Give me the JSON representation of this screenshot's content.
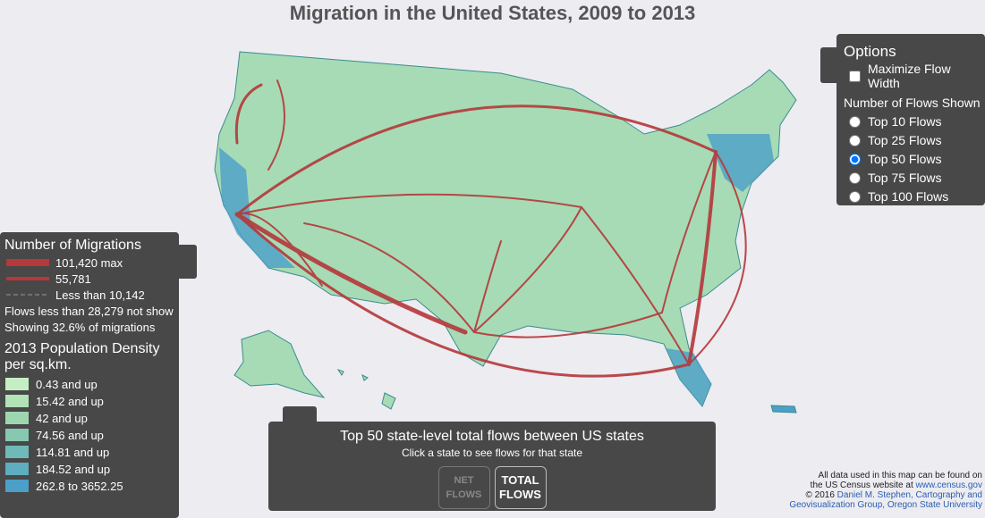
{
  "header": {
    "title": "Migration in the United States, 2009 to 2013"
  },
  "options": {
    "title": "Options",
    "maximize_flow_width": "Maximize Flow Width",
    "flows_heading": "Number of Flows Shown",
    "flow_choices": [
      "Top 10 Flows",
      "Top 25 Flows",
      "Top 50 Flows",
      "Top 75 Flows",
      "Top 100 Flows"
    ],
    "selected": 2
  },
  "legend": {
    "migrations_title": "Number of Migrations",
    "max_label": "101,420 max",
    "mid_label": "55,781",
    "min_label": "Less than 10,142",
    "note1": "Flows less than 28,279 not show",
    "note2": "Showing 32.6% of migrations",
    "density_title": "2013 Population Density",
    "density_subtitle": "per sq.km.",
    "density_classes": [
      {
        "label": "0.43 and up",
        "color": "#c6eec4"
      },
      {
        "label": "15.42 and up",
        "color": "#b2e2b6"
      },
      {
        "label": "42 and up",
        "color": "#9ed6b0"
      },
      {
        "label": "74.56 and up",
        "color": "#86c8b0"
      },
      {
        "label": "114.81 and up",
        "color": "#6fbab8"
      },
      {
        "label": "184.52 and up",
        "color": "#5eadc0"
      },
      {
        "label": "262.8 to 3652.25",
        "color": "#4b9fc8"
      }
    ]
  },
  "panel": {
    "heading": "Top 50 state-level total flows between US states",
    "subheading": "Click a state to see flows for that state",
    "buttons": [
      "NET FLOWS",
      "TOTAL FLOWS"
    ]
  },
  "credits": {
    "line1": "All data used in this map can be found on",
    "line2": "the US Census website at",
    "census_link": "www.census.gov",
    "copyright": "© 2016",
    "author_link": "Daniel M. Stephen, Cartography and",
    "org_link": "Geovisualization Group, Oregon State University"
  }
}
